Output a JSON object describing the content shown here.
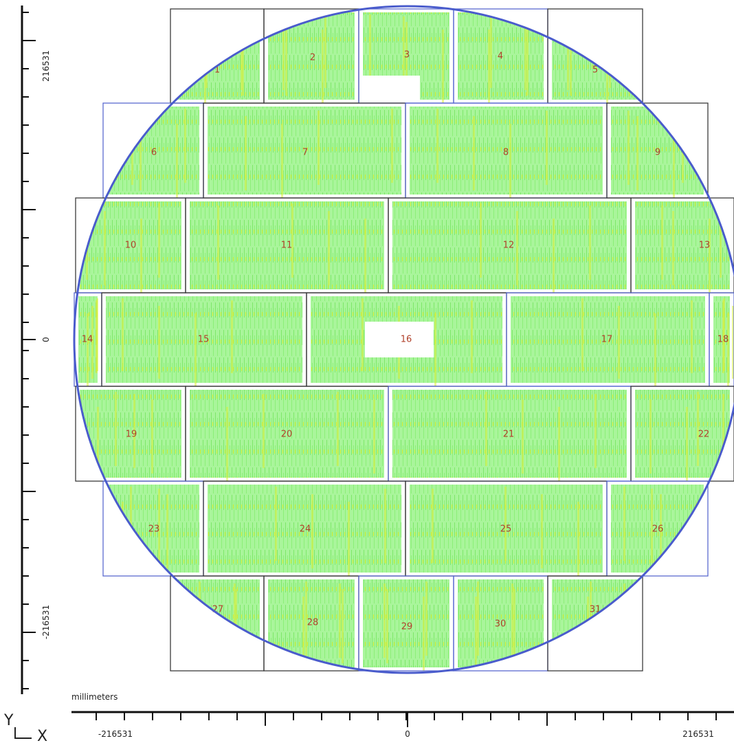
{
  "view": {
    "units": "millimeters",
    "axis_letters": {
      "y": "Y",
      "x": "X"
    },
    "x_axis": {
      "ticks": [
        {
          "value": -216531,
          "label": "-216531"
        },
        {
          "value": 0,
          "label": "0"
        },
        {
          "value": 216531,
          "label": "216531"
        }
      ]
    },
    "y_axis": {
      "ticks": [
        {
          "value": 216531,
          "label": "216531"
        },
        {
          "value": 0,
          "label": "0"
        },
        {
          "value": -216531,
          "label": "-216531"
        }
      ]
    }
  },
  "colors": {
    "wafer_outline": "#4a5ccc",
    "field_fill": "#a9f59b",
    "defect_streak": "#d8ee3a",
    "defect_hot": "#e6b400",
    "field_border": "#3a3a3a",
    "field_border_blue": "#5a6ad0",
    "field_label": "#b0402a",
    "axis": "#111111"
  },
  "fields": [
    {
      "id": 1,
      "label": "1"
    },
    {
      "id": 2,
      "label": "2"
    },
    {
      "id": 3,
      "label": "3"
    },
    {
      "id": 4,
      "label": "4"
    },
    {
      "id": 5,
      "label": "5"
    },
    {
      "id": 6,
      "label": "6"
    },
    {
      "id": 7,
      "label": "7"
    },
    {
      "id": 8,
      "label": "8"
    },
    {
      "id": 9,
      "label": "9"
    },
    {
      "id": 10,
      "label": "10"
    },
    {
      "id": 11,
      "label": "11"
    },
    {
      "id": 12,
      "label": "12"
    },
    {
      "id": 13,
      "label": "13"
    },
    {
      "id": 14,
      "label": "14"
    },
    {
      "id": 15,
      "label": "15"
    },
    {
      "id": 16,
      "label": "16"
    },
    {
      "id": 17,
      "label": "17"
    },
    {
      "id": 18,
      "label": "18"
    },
    {
      "id": 19,
      "label": "19"
    },
    {
      "id": 20,
      "label": "20"
    },
    {
      "id": 21,
      "label": "21"
    },
    {
      "id": 22,
      "label": "22"
    },
    {
      "id": 23,
      "label": "23"
    },
    {
      "id": 24,
      "label": "24"
    },
    {
      "id": 25,
      "label": "25"
    },
    {
      "id": 26,
      "label": "26"
    },
    {
      "id": 27,
      "label": "27"
    },
    {
      "id": 28,
      "label": "28"
    },
    {
      "id": 29,
      "label": "29"
    },
    {
      "id": 30,
      "label": "30"
    },
    {
      "id": 31,
      "label": "31"
    }
  ]
}
